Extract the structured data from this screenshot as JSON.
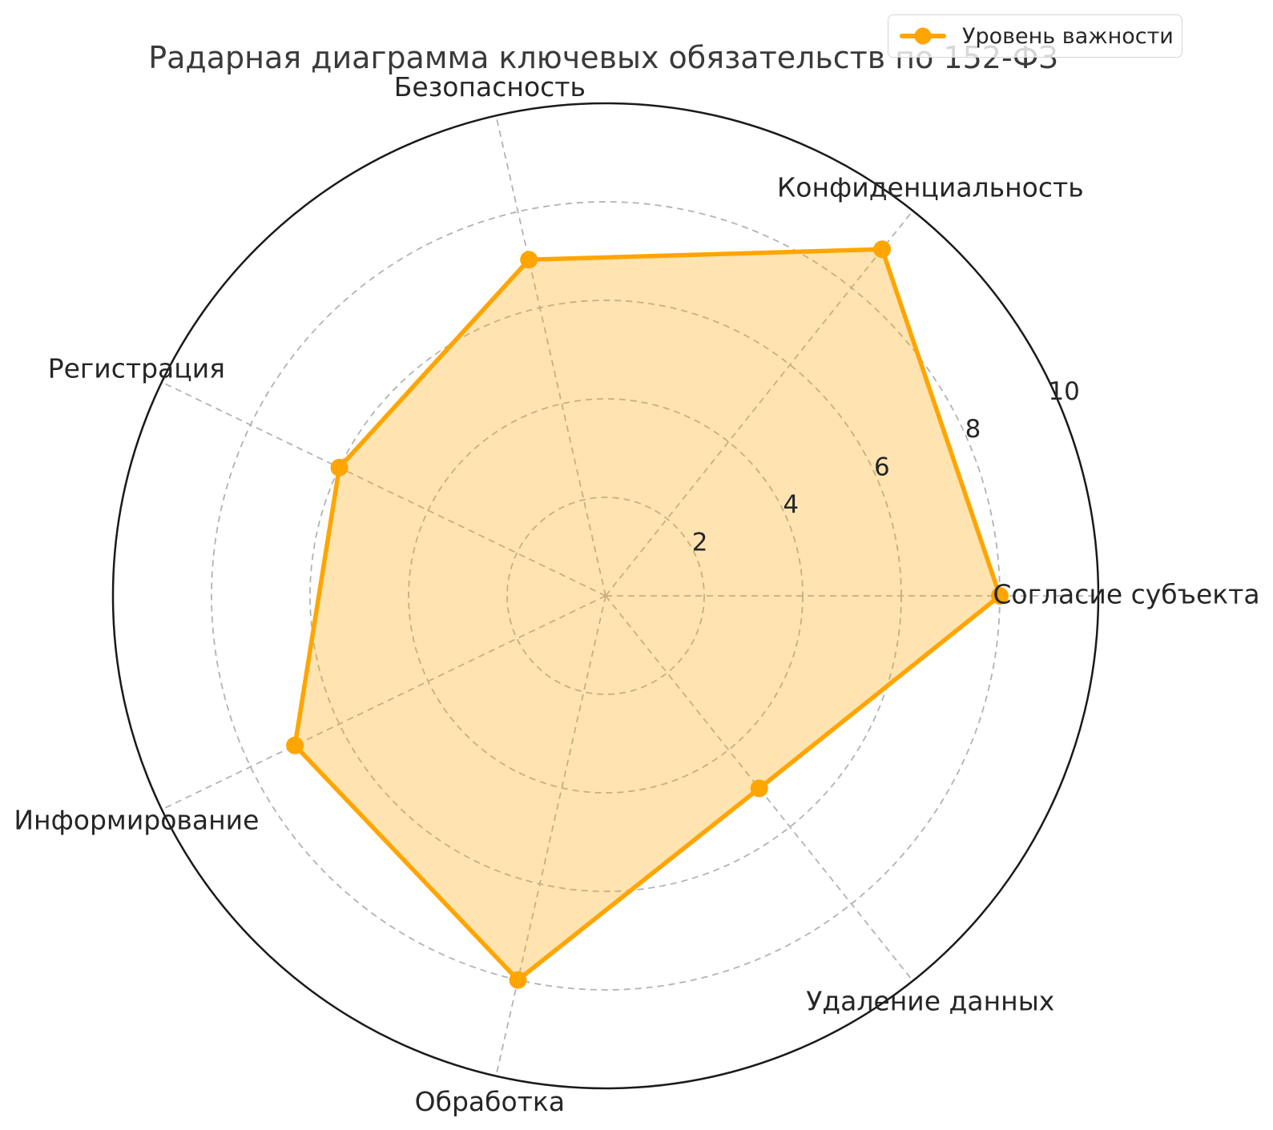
{
  "title": "Радарная диаграмма ключевых обязательств по 152-ФЗ",
  "legend": {
    "label": "Уровень важности",
    "position": "upper right"
  },
  "colors": {
    "series": "#FFA500",
    "series_fill": "rgba(255,165,0,0.30)",
    "grid": "#b3b3b3",
    "outline": "#1a1a1a",
    "tick_text": "#262626",
    "axis_text": "#262626",
    "title_text": "#3a3a3a",
    "legend_border": "#d4d4d4"
  },
  "chart_data": {
    "type": "radar",
    "projection": "polar",
    "title": "Радарная диаграмма ключевых обязательств по 152-ФЗ",
    "categories": [
      "Согласие субъекта",
      "Конфиденциальность",
      "Безопасность",
      "Регистрация",
      "Информирование",
      "Обработка",
      "Удаление данных"
    ],
    "series": [
      {
        "name": "Уровень важности",
        "values": [
          8,
          9,
          7,
          6,
          7,
          8,
          5
        ]
      }
    ],
    "rlim": [
      0,
      10
    ],
    "rticks": [
      2,
      4,
      6,
      8,
      10
    ],
    "start_angle_deg": 0,
    "direction": "counterclockwise",
    "grid": true,
    "grid_style": "dashed",
    "legend_position": "upper right"
  }
}
